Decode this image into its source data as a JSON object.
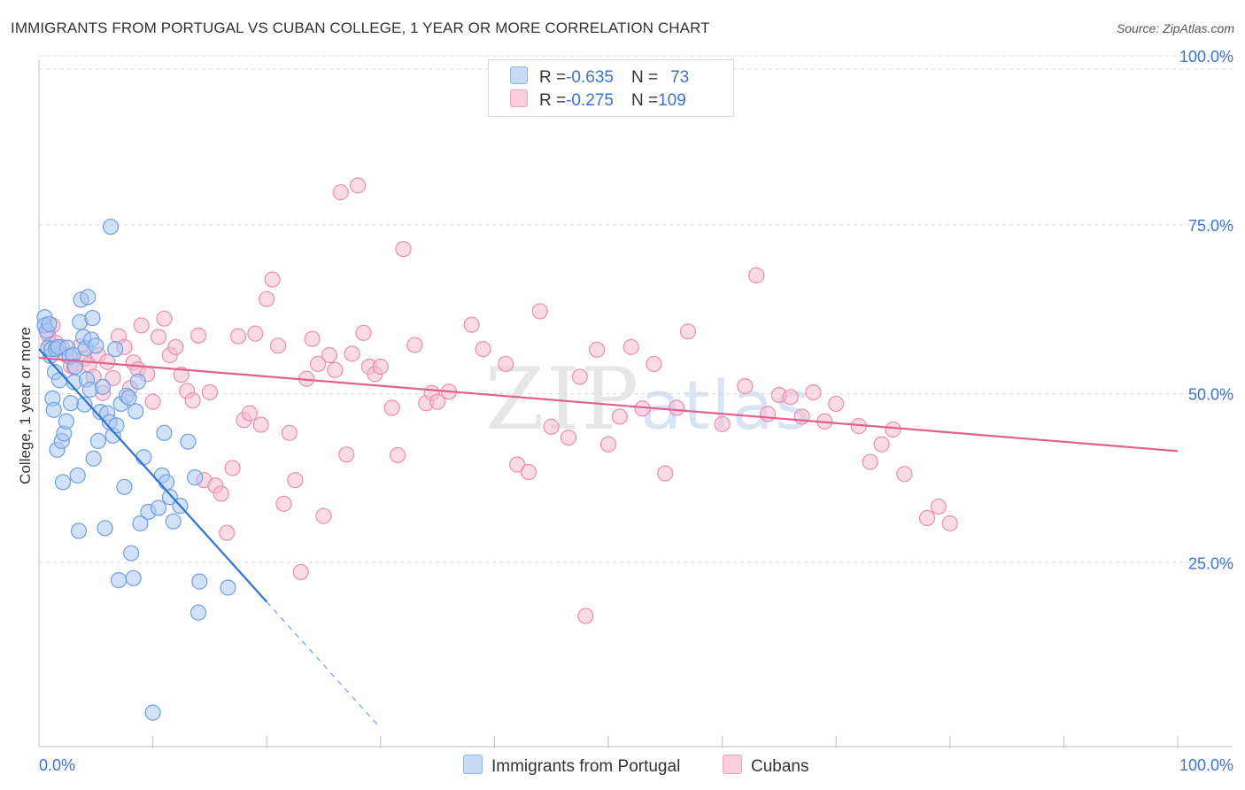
{
  "title": "IMMIGRANTS FROM PORTUGAL VS CUBAN COLLEGE, 1 YEAR OR MORE CORRELATION CHART",
  "source": "Source: ZipAtlas.com",
  "watermark": {
    "zip": "ZIP",
    "atlas": "atlas"
  },
  "colors": {
    "blue_fill": "#a9c8f2",
    "blue_stroke": "#6f9ee0",
    "blue_line": "#2f72d6",
    "pink_fill": "#f6bcd0",
    "pink_stroke": "#ea8db0",
    "pink_line": "#e2608f",
    "axis_text": "#3a73d1",
    "grid": "#d8d8d8"
  },
  "legend": {
    "r_label": "R = ",
    "n_label": "N = ",
    "blue": {
      "r": "-0.635",
      "n": "73"
    },
    "pink": {
      "r": "-0.275",
      "n": "109"
    }
  },
  "chart_data": {
    "type": "scatter",
    "title": "IMMIGRANTS FROM PORTUGAL VS CUBAN COLLEGE, 1 YEAR OR MORE CORRELATION CHART",
    "xlabel": "",
    "ylabel": "College, 1 year or more",
    "xlim": [
      0,
      100
    ],
    "ylim": [
      0,
      100
    ],
    "x_tick_labels": {
      "left": "0.0%",
      "right": "100.0%"
    },
    "y_ticks": [
      25,
      50,
      75,
      100
    ],
    "y_tick_labels": [
      "25.0%",
      "50.0%",
      "75.0%",
      "100.0%"
    ],
    "grid": true,
    "legend_position": "top-center",
    "series": [
      {
        "name": "Immigrants from Portugal",
        "color": "#a9c8f2",
        "trend": {
          "x0": 0.0,
          "y0": 56.6,
          "x1": 30.0,
          "y1": 0.5,
          "solid_until_x": 20.0
        },
        "points": [
          [
            0.5,
            61.3
          ],
          [
            0.5,
            60.1
          ],
          [
            0.7,
            59.3
          ],
          [
            0.8,
            56.8
          ],
          [
            0.9,
            60.3
          ],
          [
            1.0,
            55.6
          ],
          [
            1.1,
            56.6
          ],
          [
            1.2,
            49.3
          ],
          [
            1.3,
            47.6
          ],
          [
            1.4,
            53.2
          ],
          [
            1.5,
            56.6
          ],
          [
            1.6,
            41.7
          ],
          [
            1.7,
            56.9
          ],
          [
            1.8,
            52.0
          ],
          [
            2.0,
            43.0
          ],
          [
            2.1,
            36.9
          ],
          [
            2.2,
            44.1
          ],
          [
            2.4,
            45.9
          ],
          [
            2.5,
            56.8
          ],
          [
            2.7,
            55.5
          ],
          [
            2.8,
            48.6
          ],
          [
            3.0,
            55.7
          ],
          [
            3.1,
            51.7
          ],
          [
            3.2,
            54.0
          ],
          [
            3.4,
            37.9
          ],
          [
            3.5,
            29.7
          ],
          [
            3.6,
            60.6
          ],
          [
            3.7,
            63.9
          ],
          [
            3.9,
            58.4
          ],
          [
            4.0,
            48.4
          ],
          [
            4.1,
            56.7
          ],
          [
            4.2,
            52.1
          ],
          [
            4.3,
            64.3
          ],
          [
            4.5,
            50.6
          ],
          [
            4.6,
            58.0
          ],
          [
            4.7,
            61.2
          ],
          [
            4.8,
            40.4
          ],
          [
            5.0,
            57.1
          ],
          [
            5.2,
            43.0
          ],
          [
            5.4,
            47.3
          ],
          [
            5.6,
            51.0
          ],
          [
            5.8,
            30.1
          ],
          [
            6.0,
            47.1
          ],
          [
            6.2,
            45.8
          ],
          [
            6.3,
            74.7
          ],
          [
            6.5,
            43.8
          ],
          [
            6.7,
            56.6
          ],
          [
            6.8,
            45.3
          ],
          [
            7.0,
            22.4
          ],
          [
            7.2,
            48.5
          ],
          [
            7.5,
            36.2
          ],
          [
            7.7,
            49.7
          ],
          [
            7.9,
            49.4
          ],
          [
            8.1,
            26.4
          ],
          [
            8.3,
            22.7
          ],
          [
            8.5,
            47.4
          ],
          [
            8.7,
            51.8
          ],
          [
            8.9,
            30.8
          ],
          [
            9.2,
            40.6
          ],
          [
            9.6,
            32.5
          ],
          [
            10.5,
            33.1
          ],
          [
            10.8,
            37.9
          ],
          [
            11.0,
            44.2
          ],
          [
            11.2,
            36.9
          ],
          [
            11.5,
            34.7
          ],
          [
            11.8,
            31.1
          ],
          [
            12.4,
            33.4
          ],
          [
            13.1,
            42.9
          ],
          [
            13.7,
            37.6
          ],
          [
            14.1,
            22.2
          ],
          [
            14.0,
            17.6
          ],
          [
            16.6,
            21.3
          ],
          [
            10.0,
            2.8
          ]
        ]
      },
      {
        "name": "Cubans",
        "color": "#f6bcd0",
        "trend": {
          "x0": 0.0,
          "y0": 55.3,
          "x1": 100.0,
          "y1": 41.5
        },
        "points": [
          [
            0.8,
            58.7
          ],
          [
            1.0,
            57.3
          ],
          [
            1.2,
            60.1
          ],
          [
            1.5,
            57.5
          ],
          [
            2.0,
            56.9
          ],
          [
            2.4,
            55.7
          ],
          [
            2.8,
            54.1
          ],
          [
            3.1,
            53.9
          ],
          [
            3.6,
            57.0
          ],
          [
            4.0,
            55.2
          ],
          [
            4.4,
            54.3
          ],
          [
            4.8,
            52.5
          ],
          [
            5.2,
            55.7
          ],
          [
            5.6,
            50.1
          ],
          [
            6.0,
            54.7
          ],
          [
            6.5,
            52.3
          ],
          [
            7.0,
            58.5
          ],
          [
            7.5,
            56.9
          ],
          [
            8.0,
            50.8
          ],
          [
            8.3,
            54.6
          ],
          [
            8.7,
            53.6
          ],
          [
            9.0,
            60.1
          ],
          [
            9.5,
            52.9
          ],
          [
            10.0,
            48.8
          ],
          [
            10.5,
            58.4
          ],
          [
            11.0,
            61.1
          ],
          [
            11.5,
            55.7
          ],
          [
            12.0,
            56.9
          ],
          [
            12.5,
            52.8
          ],
          [
            13.0,
            50.4
          ],
          [
            13.5,
            49.0
          ],
          [
            14.0,
            58.6
          ],
          [
            14.5,
            37.2
          ],
          [
            15.0,
            50.2
          ],
          [
            15.5,
            36.4
          ],
          [
            16.0,
            35.2
          ],
          [
            16.5,
            29.4
          ],
          [
            17.0,
            39.0
          ],
          [
            17.5,
            58.5
          ],
          [
            18.0,
            46.1
          ],
          [
            18.5,
            47.1
          ],
          [
            19.0,
            58.9
          ],
          [
            19.5,
            45.4
          ],
          [
            20.0,
            64.0
          ],
          [
            20.5,
            66.9
          ],
          [
            21.0,
            57.1
          ],
          [
            21.5,
            33.7
          ],
          [
            22.0,
            44.2
          ],
          [
            22.5,
            37.2
          ],
          [
            23.0,
            23.6
          ],
          [
            23.5,
            52.2
          ],
          [
            24.0,
            58.1
          ],
          [
            24.5,
            54.4
          ],
          [
            25.0,
            31.9
          ],
          [
            25.5,
            55.7
          ],
          [
            26.0,
            53.5
          ],
          [
            26.5,
            79.8
          ],
          [
            27.0,
            41.0
          ],
          [
            27.5,
            55.9
          ],
          [
            28.0,
            80.8
          ],
          [
            28.5,
            59.0
          ],
          [
            29.0,
            54.0
          ],
          [
            29.5,
            52.9
          ],
          [
            30.0,
            54.0
          ],
          [
            31.0,
            47.9
          ],
          [
            31.5,
            40.9
          ],
          [
            32.0,
            71.4
          ],
          [
            33.0,
            57.2
          ],
          [
            34.0,
            48.6
          ],
          [
            34.5,
            50.1
          ],
          [
            35.0,
            48.8
          ],
          [
            36.0,
            50.3
          ],
          [
            38.0,
            60.2
          ],
          [
            39.0,
            56.6
          ],
          [
            41.0,
            54.4
          ],
          [
            42.0,
            39.5
          ],
          [
            43.0,
            38.4
          ],
          [
            44.0,
            62.2
          ],
          [
            45.0,
            45.1
          ],
          [
            46.5,
            43.5
          ],
          [
            47.5,
            52.5
          ],
          [
            49.0,
            56.5
          ],
          [
            50.0,
            42.5
          ],
          [
            51.0,
            46.6
          ],
          [
            52.0,
            56.9
          ],
          [
            53.0,
            47.8
          ],
          [
            54.0,
            54.4
          ],
          [
            55.0,
            38.2
          ],
          [
            56.0,
            47.9
          ],
          [
            57.0,
            59.2
          ],
          [
            60.0,
            45.5
          ],
          [
            62.0,
            51.1
          ],
          [
            63.0,
            67.5
          ],
          [
            64.0,
            47.0
          ],
          [
            65.0,
            49.8
          ],
          [
            66.0,
            49.5
          ],
          [
            67.0,
            46.6
          ],
          [
            68.0,
            50.2
          ],
          [
            69.0,
            45.9
          ],
          [
            70.0,
            48.5
          ],
          [
            72.0,
            45.2
          ],
          [
            73.0,
            39.9
          ],
          [
            74.0,
            42.5
          ],
          [
            75.0,
            44.7
          ],
          [
            76.0,
            38.1
          ],
          [
            78.0,
            31.6
          ],
          [
            79.0,
            33.3
          ],
          [
            80.0,
            30.8
          ],
          [
            48.0,
            17.1
          ]
        ]
      }
    ]
  }
}
